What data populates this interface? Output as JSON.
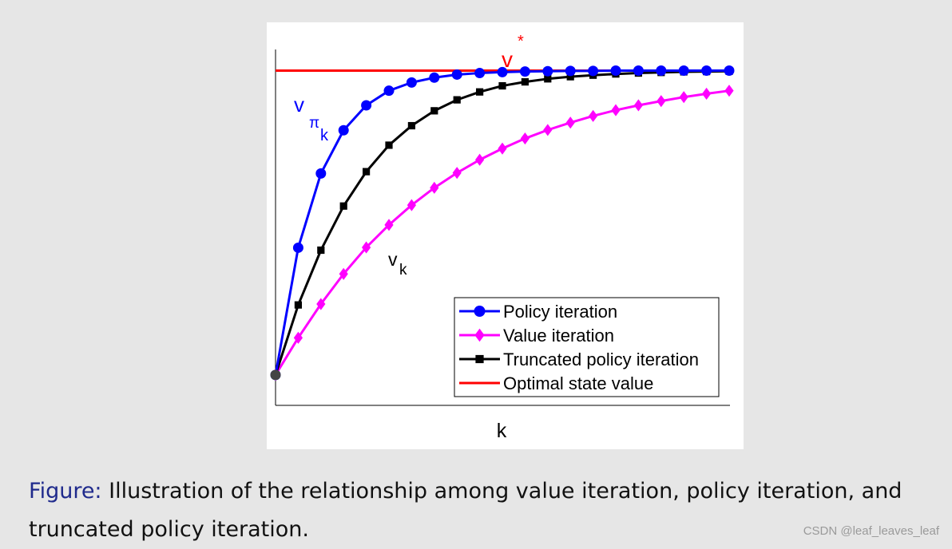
{
  "chart_data": {
    "type": "line",
    "x": [
      0,
      1,
      2,
      3,
      4,
      5,
      6,
      7,
      8,
      9,
      10,
      11,
      12,
      13,
      14,
      15,
      16,
      17,
      18,
      19,
      20
    ],
    "series": [
      {
        "name": "Policy iteration",
        "color": "#0000ff",
        "marker": "circle",
        "values": [
          0,
          0.418,
          0.662,
          0.804,
          0.886,
          0.934,
          0.961,
          0.977,
          0.987,
          0.992,
          0.995,
          0.997,
          0.998,
          0.999,
          0.999,
          1,
          1,
          1,
          1,
          1,
          1
        ]
      },
      {
        "name": "Value iteration",
        "color": "#ff00ff",
        "marker": "diamond",
        "values": [
          0,
          0.122,
          0.233,
          0.332,
          0.419,
          0.493,
          0.558,
          0.615,
          0.664,
          0.707,
          0.744,
          0.777,
          0.805,
          0.829,
          0.851,
          0.87,
          0.886,
          0.9,
          0.913,
          0.924,
          0.934
        ]
      },
      {
        "name": "Truncated policy iteration",
        "color": "#000000",
        "marker": "square",
        "values": [
          0,
          0.23,
          0.41,
          0.555,
          0.668,
          0.755,
          0.819,
          0.868,
          0.904,
          0.93,
          0.95,
          0.963,
          0.973,
          0.98,
          0.985,
          0.989,
          0.992,
          0.994,
          0.996,
          0.997,
          0.998
        ]
      },
      {
        "name": "Optimal state value",
        "color": "#ff0000",
        "marker": "none",
        "values": [
          1,
          1,
          1,
          1,
          1,
          1,
          1,
          1,
          1,
          1,
          1,
          1,
          1,
          1,
          1,
          1,
          1,
          1,
          1,
          1,
          1
        ]
      }
    ],
    "xlabel": "k",
    "ylim": [
      -0.1,
      1.08
    ],
    "grid": false,
    "legend_position": "bottom-right",
    "annotations": {
      "v_star": {
        "main": "v",
        "sup": "*"
      },
      "v_pi_k": {
        "main": "v",
        "sub": "π",
        "subsub": "k"
      },
      "v_k": {
        "main": "v",
        "sub": "k"
      }
    }
  },
  "caption": {
    "lead": "Figure:",
    "text": " Illustration of the relationship among value iteration, policy iteration, and truncated policy iteration."
  },
  "watermark": "CSDN @leaf_leaves_leaf"
}
